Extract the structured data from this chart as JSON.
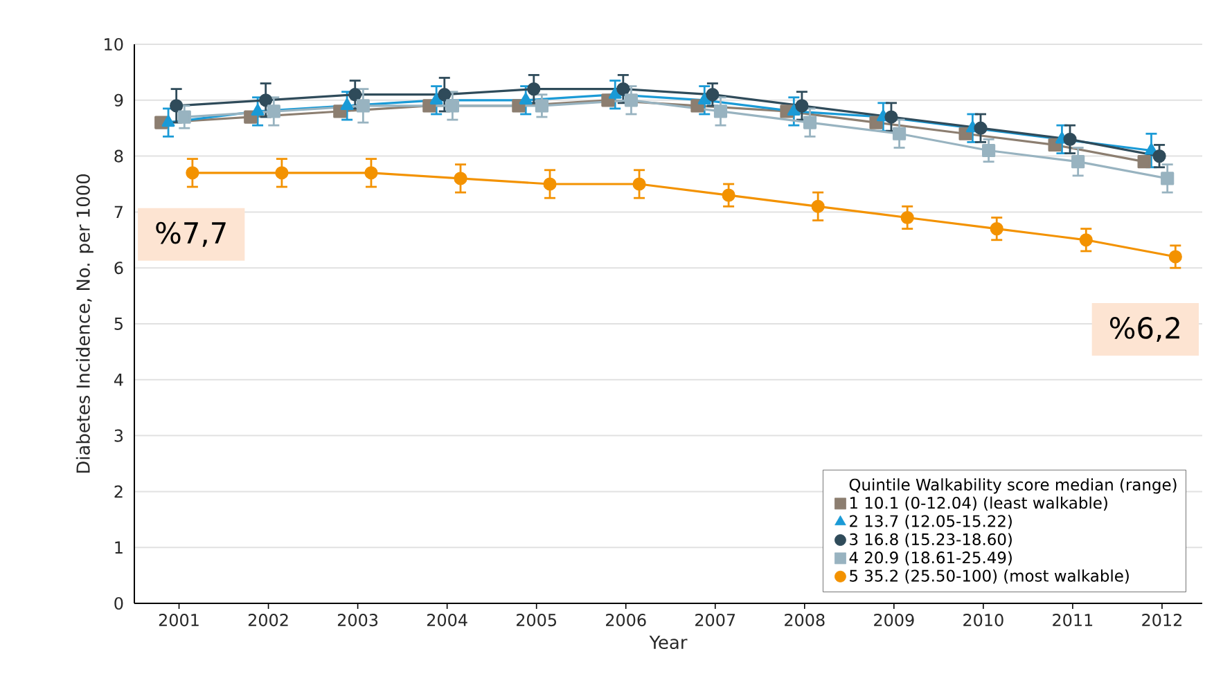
{
  "chart_data": {
    "type": "line",
    "xlim": [
      2000.5,
      2012.45
    ],
    "xticks": [
      2001,
      2002,
      2003,
      2004,
      2005,
      2006,
      2007,
      2008,
      2009,
      2010,
      2011,
      2012
    ],
    "ylim": [
      0,
      10
    ],
    "yticks": [
      0,
      1,
      2,
      3,
      4,
      5,
      6,
      7,
      8,
      9,
      10
    ],
    "xlabel": "Year",
    "ylabel": "Diabetes Incidence, No. per 1000",
    "legend_title": "Quintile    Walkability score median (range)",
    "legend": "bottom right",
    "grid": "y",
    "line_style": "solid",
    "series": [
      {
        "name": "1    10.1 (0-12.04) (least walkable)",
        "color": "#8c7e70",
        "marker": "square",
        "x": [
          2000.8,
          2001.8,
          2002.8,
          2003.8,
          2004.8,
          2005.8,
          2006.8,
          2007.8,
          2008.8,
          2009.8,
          2010.8,
          2011.8
        ],
        "values": [
          8.6,
          8.7,
          8.8,
          8.9,
          8.9,
          9.0,
          8.9,
          8.8,
          8.6,
          8.4,
          8.2,
          7.9
        ]
      },
      {
        "name": "2    13.7 (12.05-15.22)",
        "color": "#1a9ad6",
        "marker": "triangle",
        "x": [
          2000.88,
          2001.88,
          2002.88,
          2003.88,
          2004.88,
          2005.88,
          2006.88,
          2007.88,
          2008.88,
          2009.88,
          2010.88,
          2011.88
        ],
        "values": [
          8.6,
          8.8,
          8.9,
          9.0,
          9.0,
          9.1,
          9.0,
          8.8,
          8.7,
          8.5,
          8.3,
          8.1
        ],
        "errors": [
          0.25,
          0.25,
          0.25,
          0.25,
          0.25,
          0.25,
          0.25,
          0.25,
          0.25,
          0.25,
          0.25,
          0.3
        ]
      },
      {
        "name": "3    16.8 (15.23-18.60)",
        "color": "#2f4b5a",
        "marker": "circle",
        "x": [
          2000.97,
          2001.97,
          2002.97,
          2003.97,
          2004.97,
          2005.97,
          2006.97,
          2007.97,
          2008.97,
          2009.97,
          2010.97,
          2011.97
        ],
        "values": [
          8.9,
          9.0,
          9.1,
          9.1,
          9.2,
          9.2,
          9.1,
          8.9,
          8.7,
          8.5,
          8.3,
          8.0
        ],
        "errors": [
          0.3,
          0.3,
          0.25,
          0.3,
          0.25,
          0.25,
          0.2,
          0.25,
          0.25,
          0.25,
          0.25,
          0.2
        ]
      },
      {
        "name": "4    20.9 (18.61-25.49)",
        "color": "#98b3c0",
        "marker": "square",
        "x": [
          2001.06,
          2002.06,
          2003.06,
          2004.06,
          2005.06,
          2006.06,
          2007.06,
          2008.06,
          2009.06,
          2010.06,
          2011.06,
          2012.06
        ],
        "values": [
          8.7,
          8.8,
          8.9,
          8.9,
          8.9,
          9.0,
          8.8,
          8.6,
          8.4,
          8.1,
          7.9,
          7.6
        ],
        "errors": [
          0.2,
          0.25,
          0.3,
          0.25,
          0.2,
          0.25,
          0.25,
          0.25,
          0.25,
          0.2,
          0.25,
          0.25
        ]
      },
      {
        "name": "5    35.2 (25.50-100) (most walkable)",
        "color": "#f39200",
        "marker": "circle",
        "x": [
          2001.15,
          2002.15,
          2003.15,
          2004.15,
          2005.15,
          2006.15,
          2007.15,
          2008.15,
          2009.15,
          2010.15,
          2011.15,
          2012.15
        ],
        "values": [
          7.7,
          7.7,
          7.7,
          7.6,
          7.5,
          7.5,
          7.3,
          7.1,
          6.9,
          6.7,
          6.5,
          6.2
        ],
        "errors": [
          0.25,
          0.25,
          0.25,
          0.25,
          0.25,
          0.25,
          0.2,
          0.25,
          0.2,
          0.2,
          0.2,
          0.2
        ]
      }
    ],
    "annotations": [
      "%7,7",
      "%6,2"
    ]
  }
}
